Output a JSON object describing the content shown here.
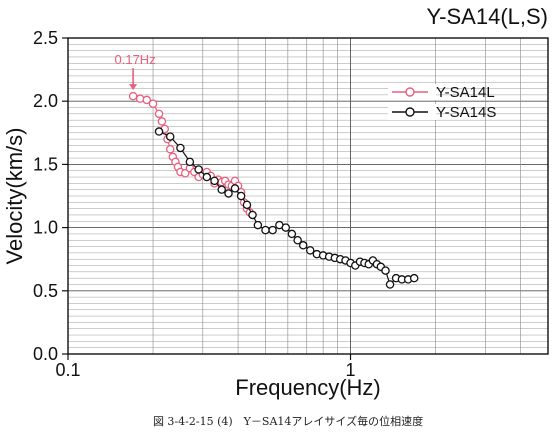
{
  "chart_data": {
    "type": "scatter",
    "title": "Y-SA14(L,S)",
    "xlabel": "Frequency(Hz)",
    "ylabel": "Velocity(km/s)",
    "x_scale": "log",
    "xlim": [
      0.1,
      5
    ],
    "ylim": [
      0.0,
      2.5
    ],
    "x_ticks": [
      "0.1",
      "1"
    ],
    "y_ticks": [
      "0.0",
      "0.5",
      "1.0",
      "1.5",
      "2.0",
      "2.5"
    ],
    "grid": true,
    "legend_position": "top-right",
    "annotation": {
      "text": "0.17Hz",
      "x": 0.17,
      "y": 2.04,
      "color": "#e8607e"
    },
    "series": [
      {
        "name": "Y-SA14L",
        "color": "#e8607e",
        "x": [
          0.17,
          0.18,
          0.19,
          0.2,
          0.21,
          0.215,
          0.22,
          0.225,
          0.23,
          0.235,
          0.24,
          0.245,
          0.25,
          0.26,
          0.27,
          0.28,
          0.29,
          0.3,
          0.31,
          0.32,
          0.33,
          0.34,
          0.35,
          0.36,
          0.37,
          0.38,
          0.39,
          0.4,
          0.41,
          0.42,
          0.43,
          0.44
        ],
        "y": [
          2.04,
          2.02,
          2.01,
          1.98,
          1.9,
          1.84,
          1.78,
          1.7,
          1.62,
          1.56,
          1.52,
          1.48,
          1.44,
          1.43,
          1.47,
          1.44,
          1.4,
          1.42,
          1.44,
          1.41,
          1.35,
          1.38,
          1.36,
          1.37,
          1.34,
          1.33,
          1.37,
          1.33,
          1.28,
          1.2,
          1.15,
          1.12
        ]
      },
      {
        "name": "Y-SA14S",
        "color": "#111111",
        "x": [
          0.21,
          0.23,
          0.25,
          0.27,
          0.29,
          0.31,
          0.33,
          0.35,
          0.37,
          0.39,
          0.41,
          0.43,
          0.45,
          0.47,
          0.5,
          0.53,
          0.56,
          0.59,
          0.62,
          0.65,
          0.68,
          0.72,
          0.76,
          0.8,
          0.84,
          0.88,
          0.92,
          0.96,
          1.0,
          1.04,
          1.08,
          1.12,
          1.16,
          1.2,
          1.24,
          1.28,
          1.33,
          1.38,
          1.45,
          1.52,
          1.6,
          1.68
        ],
        "y": [
          1.76,
          1.72,
          1.63,
          1.52,
          1.46,
          1.4,
          1.37,
          1.3,
          1.27,
          1.31,
          1.25,
          1.18,
          1.1,
          1.02,
          0.98,
          0.98,
          1.02,
          1.0,
          0.95,
          0.9,
          0.86,
          0.82,
          0.79,
          0.78,
          0.77,
          0.76,
          0.75,
          0.74,
          0.72,
          0.7,
          0.73,
          0.72,
          0.71,
          0.74,
          0.71,
          0.69,
          0.66,
          0.55,
          0.6,
          0.59,
          0.59,
          0.6
        ]
      }
    ]
  },
  "caption": "図 3-4-2-15 (4)　Y－SA14アレイサイズ毎の位相速度"
}
